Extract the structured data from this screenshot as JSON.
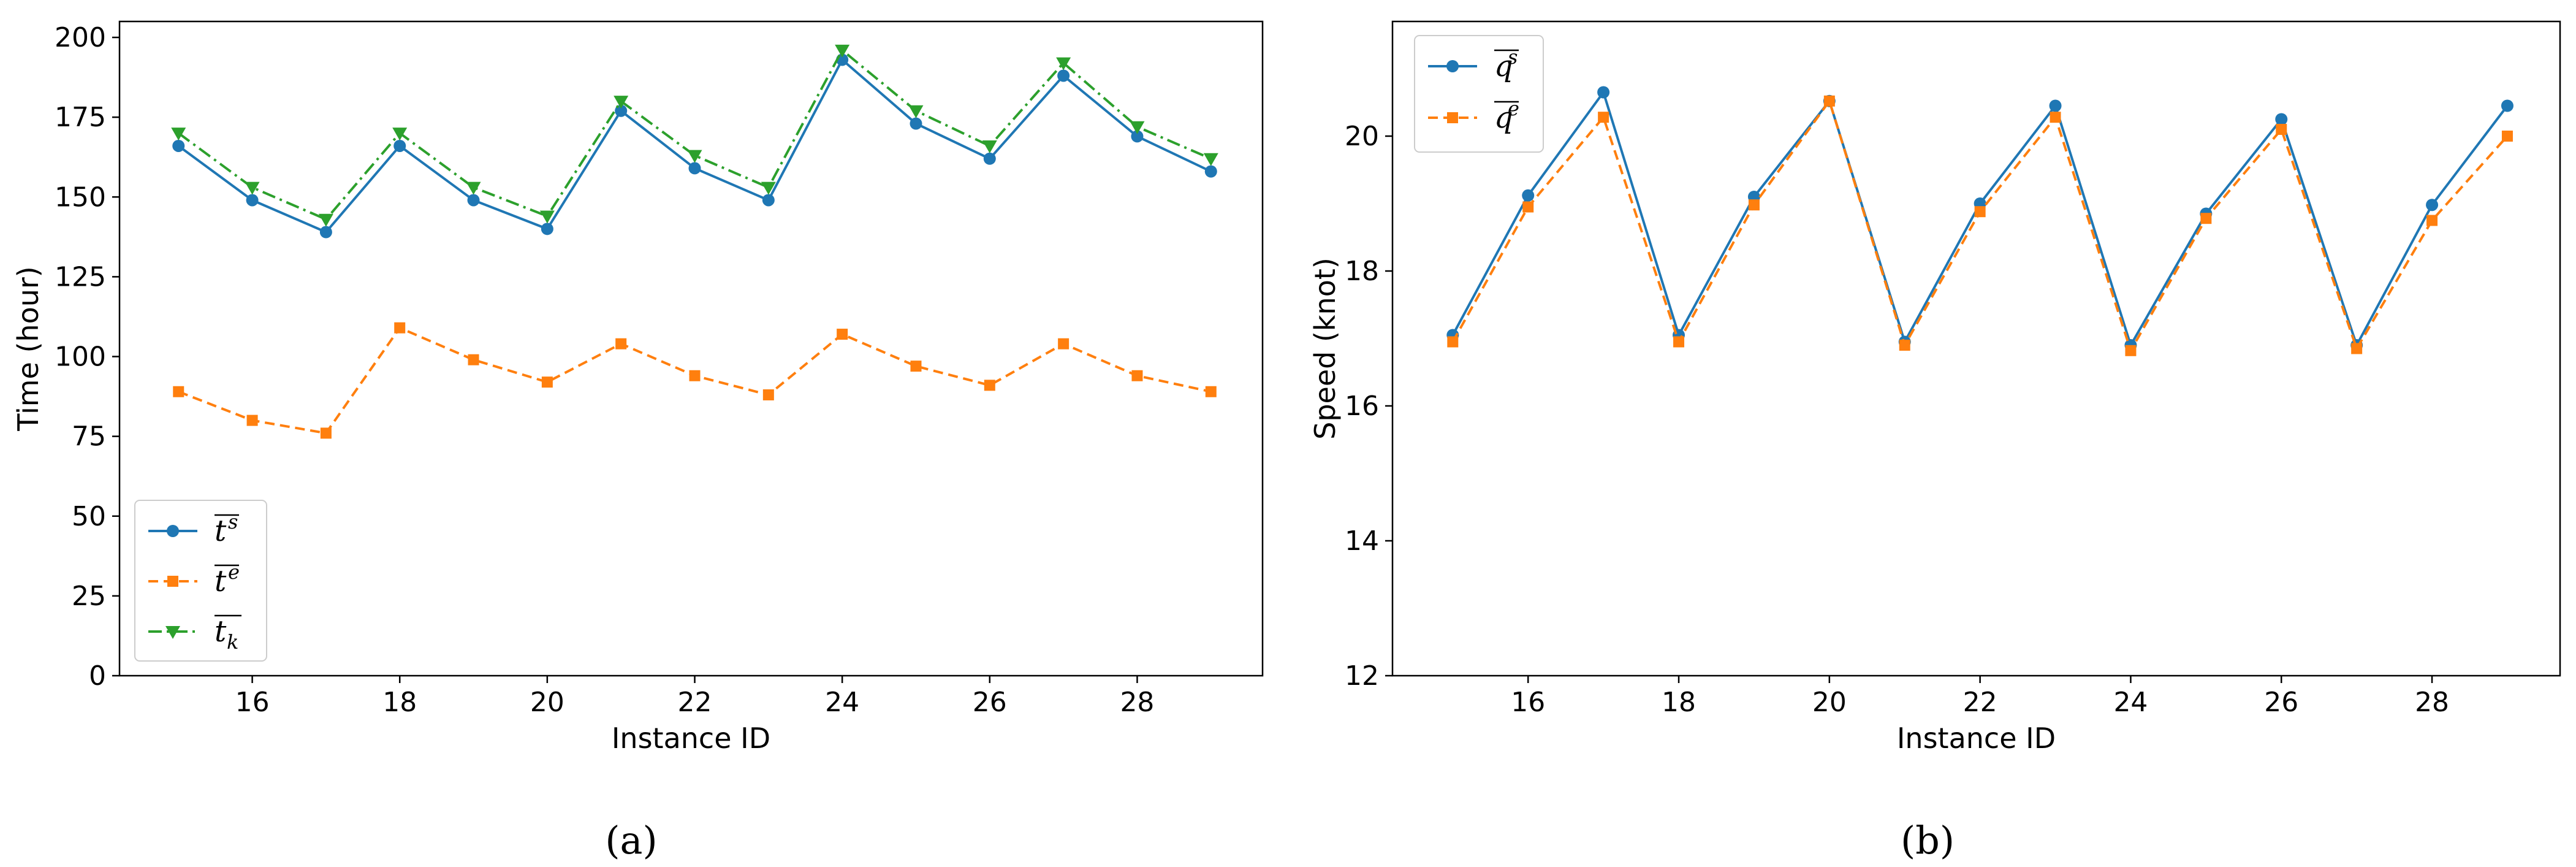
{
  "chart_data": [
    {
      "type": "line",
      "caption": "(a)",
      "xlabel": "Instance ID",
      "ylabel": "Time (hour)",
      "xlim": [
        14.2,
        29.7
      ],
      "ylim": [
        0,
        205
      ],
      "xticks": [
        16,
        18,
        20,
        22,
        24,
        26,
        28
      ],
      "yticks": [
        0,
        25,
        50,
        75,
        100,
        125,
        150,
        175,
        200
      ],
      "x": [
        15,
        16,
        17,
        18,
        19,
        20,
        21,
        22,
        23,
        24,
        25,
        26,
        27,
        28,
        29
      ],
      "legend_position": "lower-left",
      "series": [
        {
          "name": "t^s",
          "legend_base": "t",
          "legend_sup": "s",
          "legend_sub": "",
          "color": "#1f77b4",
          "marker": "circle",
          "dash": "solid",
          "values": [
            166,
            149,
            139,
            166,
            149,
            140,
            177,
            159,
            149,
            193,
            173,
            162,
            188,
            169,
            158
          ]
        },
        {
          "name": "t^e",
          "legend_base": "t",
          "legend_sup": "e",
          "legend_sub": "",
          "color": "#ff7f0e",
          "marker": "square",
          "dash": "dashed",
          "values": [
            89,
            80,
            76,
            109,
            99,
            92,
            104,
            94,
            88,
            107,
            97,
            91,
            104,
            94,
            89
          ]
        },
        {
          "name": "t_k",
          "legend_base": "t",
          "legend_sup": "",
          "legend_sub": "k",
          "color": "#2ca02c",
          "marker": "triangle-down",
          "dash": "dashdot",
          "values": [
            170,
            153,
            143,
            170,
            153,
            144,
            180,
            163,
            153,
            196,
            177,
            166,
            192,
            172,
            162
          ]
        }
      ]
    },
    {
      "type": "line",
      "caption": "(b)",
      "xlabel": "Instance ID",
      "ylabel": "Speed (knot)",
      "xlim": [
        14.2,
        29.7
      ],
      "ylim": [
        12,
        21.7
      ],
      "xticks": [
        16,
        18,
        20,
        22,
        24,
        26,
        28
      ],
      "yticks": [
        12,
        14,
        16,
        18,
        20
      ],
      "x": [
        15,
        16,
        17,
        18,
        19,
        20,
        21,
        22,
        23,
        24,
        25,
        26,
        27,
        28,
        29
      ],
      "legend_position": "upper-left",
      "series": [
        {
          "name": "q^s",
          "legend_base": "q",
          "legend_sup": "s",
          "legend_sub": "",
          "color": "#1f77b4",
          "marker": "circle",
          "dash": "solid",
          "values": [
            17.05,
            19.12,
            20.65,
            17.05,
            19.1,
            20.52,
            16.95,
            19.0,
            20.45,
            16.9,
            18.85,
            20.25,
            16.9,
            18.98,
            20.45
          ]
        },
        {
          "name": "q^e",
          "legend_base": "q",
          "legend_sup": "e",
          "legend_sub": "",
          "color": "#ff7f0e",
          "marker": "square",
          "dash": "dashed",
          "values": [
            16.95,
            18.95,
            20.28,
            16.95,
            18.98,
            20.52,
            16.9,
            18.88,
            20.28,
            16.82,
            18.78,
            20.1,
            16.85,
            18.75,
            20.0
          ]
        }
      ]
    }
  ]
}
